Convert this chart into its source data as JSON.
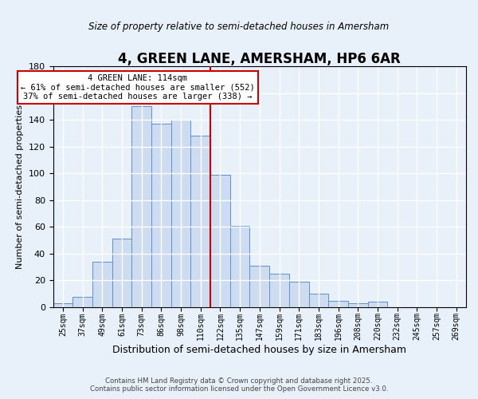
{
  "title": "4, GREEN LANE, AMERSHAM, HP6 6AR",
  "subtitle": "Size of property relative to semi-detached houses in Amersham",
  "xlabel": "Distribution of semi-detached houses by size in Amersham",
  "ylabel": "Number of semi-detached properties",
  "bin_labels": [
    "25sqm",
    "37sqm",
    "49sqm",
    "61sqm",
    "73sqm",
    "86sqm",
    "98sqm",
    "110sqm",
    "122sqm",
    "135sqm",
    "147sqm",
    "159sqm",
    "171sqm",
    "183sqm",
    "196sqm",
    "208sqm",
    "220sqm",
    "232sqm",
    "245sqm",
    "257sqm",
    "269sqm"
  ],
  "bar_heights": [
    3,
    8,
    34,
    51,
    150,
    137,
    140,
    128,
    99,
    61,
    31,
    25,
    19,
    10,
    5,
    3,
    4,
    0,
    0,
    0,
    0
  ],
  "bar_color": "#cddcf0",
  "bar_edge_color": "#6090c8",
  "vline_color": "#cc0000",
  "annotation_title": "4 GREEN LANE: 114sqm",
  "annotation_line1": "← 61% of semi-detached houses are smaller (552)",
  "annotation_line2": "37% of semi-detached houses are larger (338) →",
  "annotation_box_color": "#ffffff",
  "annotation_box_edge": "#cc0000",
  "ylim": [
    0,
    180
  ],
  "yticks": [
    0,
    20,
    40,
    60,
    80,
    100,
    120,
    140,
    160,
    180
  ],
  "background_color": "#e8f0fa",
  "footer_line1": "Contains HM Land Registry data © Crown copyright and database right 2025.",
  "footer_line2": "Contains public sector information licensed under the Open Government Licence v3.0."
}
